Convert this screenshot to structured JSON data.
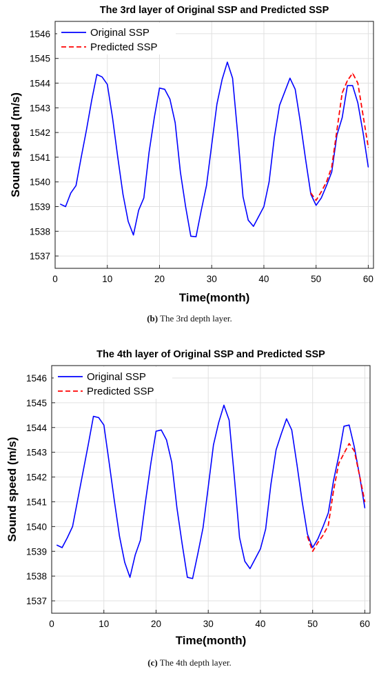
{
  "chart_data": [
    {
      "type": "line",
      "title": "The 3rd layer of Original SSP and Predicted SSP",
      "xlabel": "Time(month)",
      "ylabel": "Sound speed (m/s)",
      "xlim": [
        0,
        61
      ],
      "ylim": [
        1536.5,
        1546.5
      ],
      "xticks": [
        0,
        10,
        20,
        30,
        40,
        50,
        60
      ],
      "yticks": [
        1537,
        1538,
        1539,
        1540,
        1541,
        1542,
        1543,
        1544,
        1545,
        1546
      ],
      "grid": true,
      "legend": "top-left",
      "caption_tag": "(b)",
      "caption_text": " The 3rd depth layer.",
      "series": [
        {
          "name": "Original SSP",
          "color": "#0000ff",
          "style": "solid",
          "x": [
            1,
            2,
            3,
            4,
            5,
            6,
            7,
            8,
            9,
            10,
            11,
            12,
            13,
            14,
            15,
            16,
            17,
            18,
            19,
            20,
            21,
            22,
            23,
            24,
            25,
            26,
            27,
            28,
            29,
            30,
            31,
            32,
            33,
            34,
            35,
            36,
            37,
            38,
            39,
            40,
            41,
            42,
            43,
            44,
            45,
            46,
            47,
            48,
            49,
            50,
            51,
            52,
            53,
            54,
            55,
            56,
            57,
            58,
            59,
            60
          ],
          "values": [
            1539.1,
            1539.0,
            1539.55,
            1539.85,
            1541.0,
            1542.1,
            1543.3,
            1544.35,
            1544.25,
            1543.95,
            1542.6,
            1541.0,
            1539.5,
            1538.4,
            1537.85,
            1538.85,
            1539.35,
            1541.2,
            1542.6,
            1543.8,
            1543.75,
            1543.35,
            1542.4,
            1540.4,
            1539.0,
            1537.8,
            1537.78,
            1538.85,
            1539.85,
            1541.5,
            1543.15,
            1544.15,
            1544.85,
            1544.2,
            1541.9,
            1539.4,
            1538.45,
            1538.2,
            1538.6,
            1539.0,
            1540.0,
            1541.8,
            1543.1,
            1543.65,
            1544.2,
            1543.75,
            1542.4,
            1540.9,
            1539.5,
            1539.05,
            1539.35,
            1539.85,
            1540.4,
            1541.9,
            1542.6,
            1543.9,
            1543.9,
            1543.2,
            1542.0,
            1540.6
          ]
        },
        {
          "name": "Predicted SSP",
          "color": "#ff0000",
          "style": "dashed",
          "x": [
            49,
            50,
            51,
            52,
            53,
            54,
            55,
            56,
            57,
            58,
            59,
            60
          ],
          "values": [
            1539.55,
            1539.25,
            1539.6,
            1540.0,
            1540.6,
            1542.1,
            1543.6,
            1544.1,
            1544.4,
            1544.0,
            1542.7,
            1541.4
          ]
        }
      ]
    },
    {
      "type": "line",
      "title": "The 4th layer of Original SSP and Predicted SSP",
      "xlabel": "Time(month)",
      "ylabel": "Sound speed (m/s)",
      "xlim": [
        0,
        61
      ],
      "ylim": [
        1536.5,
        1546.5
      ],
      "xticks": [
        0,
        10,
        20,
        30,
        40,
        50,
        60
      ],
      "yticks": [
        1537,
        1538,
        1539,
        1540,
        1541,
        1542,
        1543,
        1544,
        1545,
        1546
      ],
      "grid": true,
      "legend": "top-left",
      "caption_tag": "(c)",
      "caption_text": " The 4th depth layer.",
      "series": [
        {
          "name": "Original SSP",
          "color": "#0000ff",
          "style": "solid",
          "x": [
            1,
            2,
            3,
            4,
            5,
            6,
            7,
            8,
            9,
            10,
            11,
            12,
            13,
            14,
            15,
            16,
            17,
            18,
            19,
            20,
            21,
            22,
            23,
            24,
            25,
            26,
            27,
            28,
            29,
            30,
            31,
            32,
            33,
            34,
            35,
            36,
            37,
            38,
            39,
            40,
            41,
            42,
            43,
            44,
            45,
            46,
            47,
            48,
            49,
            50,
            51,
            52,
            53,
            54,
            55,
            56,
            57,
            58,
            59,
            60
          ],
          "values": [
            1539.25,
            1539.15,
            1539.55,
            1540.0,
            1541.1,
            1542.2,
            1543.3,
            1544.45,
            1544.4,
            1544.1,
            1542.6,
            1541.05,
            1539.6,
            1538.55,
            1537.95,
            1538.85,
            1539.45,
            1541.05,
            1542.55,
            1543.85,
            1543.9,
            1543.5,
            1542.6,
            1540.75,
            1539.3,
            1537.95,
            1537.9,
            1538.9,
            1539.95,
            1541.6,
            1543.3,
            1544.2,
            1544.9,
            1544.3,
            1542.0,
            1539.55,
            1538.6,
            1538.3,
            1538.7,
            1539.1,
            1539.9,
            1541.7,
            1543.1,
            1543.75,
            1544.35,
            1543.9,
            1542.5,
            1541.0,
            1539.7,
            1539.15,
            1539.5,
            1540.0,
            1540.55,
            1541.85,
            1542.85,
            1544.05,
            1544.1,
            1543.2,
            1542.05,
            1540.75
          ]
        },
        {
          "name": "Predicted SSP",
          "color": "#ff0000",
          "style": "dashed",
          "x": [
            49,
            50,
            51,
            52,
            53,
            54,
            55,
            56,
            57,
            58,
            59,
            60
          ],
          "values": [
            1539.6,
            1539.0,
            1539.35,
            1539.65,
            1540.05,
            1541.45,
            1542.55,
            1542.95,
            1543.35,
            1543.05,
            1542.05,
            1541.0
          ]
        }
      ]
    }
  ]
}
